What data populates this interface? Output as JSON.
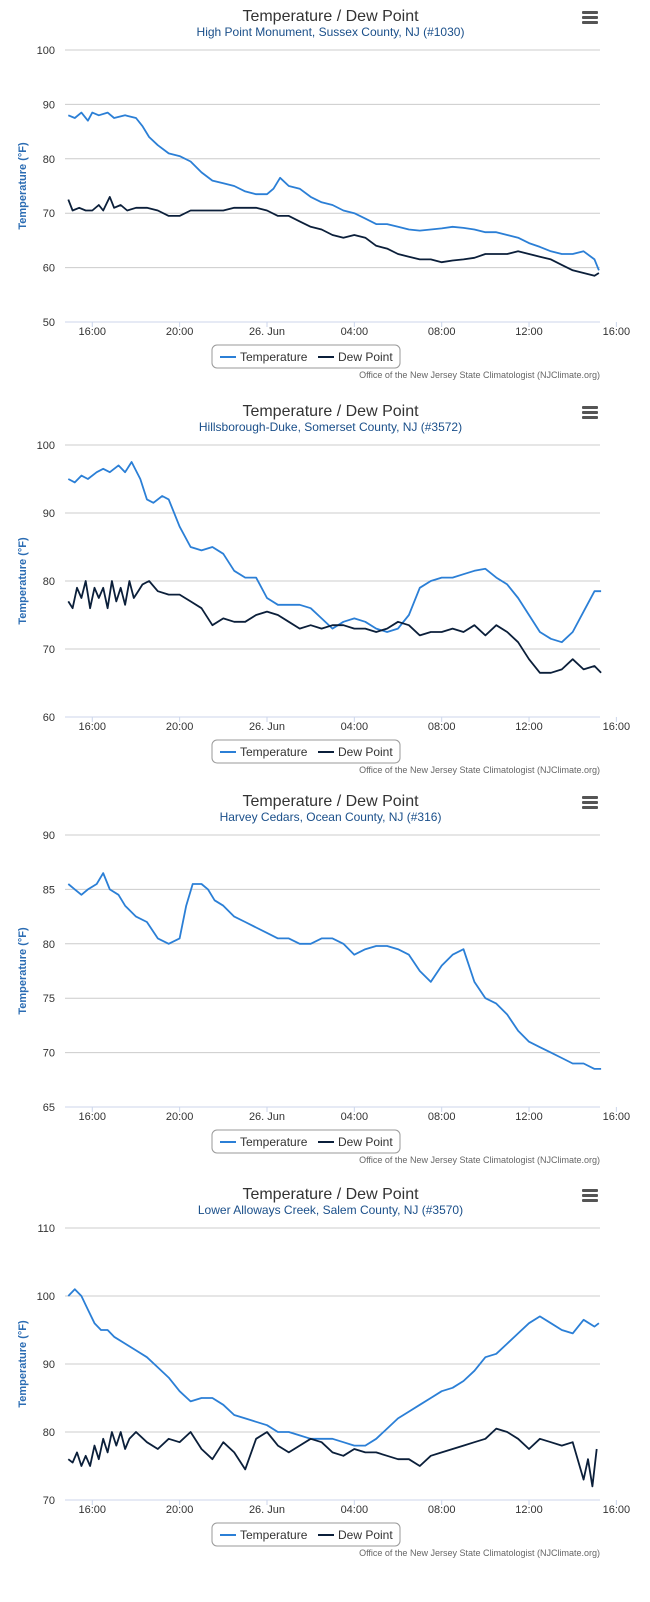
{
  "colors": {
    "temperature": "#2b7fd6",
    "dew_point": "#0b1f3a",
    "grid": "#cccccc",
    "title": "#333333",
    "subtitle": "#1a4f8a",
    "axis_title": "#2b6cb3"
  },
  "icons": {
    "menu": "menu-icon"
  },
  "chart_data": [
    {
      "type": "line",
      "title": "Temperature / Dew Point",
      "subtitle": "High Point Monument, Sussex County, NJ (#1030)",
      "ylabel": "Temperature (°F)",
      "xlabel": "",
      "ylim": [
        50,
        100
      ],
      "yticks": [
        50,
        60,
        70,
        80,
        90,
        100
      ],
      "xlim": [
        -1.25,
        23.25
      ],
      "xtick_values": [
        0,
        4,
        8,
        12,
        16,
        20,
        24
      ],
      "xtick_labels": [
        "16:00",
        "20:00",
        "26. Jun",
        "04:00",
        "08:00",
        "12:00",
        "16:00"
      ],
      "legend": [
        "Temperature",
        "Dew Point"
      ],
      "credit": "Office of the New Jersey State Climatologist (NJClimate.org)",
      "x_unit": "hours since 25 Jun 16:00",
      "series": [
        {
          "name": "Temperature",
          "x": [
            -1.1,
            -0.8,
            -0.5,
            -0.2,
            0,
            0.3,
            0.7,
            1,
            1.5,
            2,
            2.3,
            2.6,
            3,
            3.5,
            4,
            4.5,
            5,
            5.5,
            6,
            6.5,
            7,
            7.5,
            8,
            8.3,
            8.6,
            9,
            9.5,
            10,
            10.5,
            11,
            11.5,
            12,
            12.5,
            13,
            13.5,
            14,
            14.5,
            15,
            15.5,
            16,
            16.5,
            17,
            17.5,
            18,
            18.5,
            19,
            19.5,
            20,
            20.5,
            21,
            21.5,
            22,
            22.5,
            23,
            23.2
          ],
          "values": [
            88,
            87.5,
            88.5,
            87,
            88.5,
            88,
            88.5,
            87.5,
            88,
            87.5,
            86,
            84,
            82.5,
            81,
            80.5,
            79.5,
            77.5,
            76,
            75.5,
            75,
            74,
            73.5,
            73.5,
            74.5,
            76.5,
            75,
            74.5,
            73,
            72,
            71.5,
            70.5,
            70,
            69,
            68,
            68,
            67.5,
            67,
            66.8,
            67,
            67.2,
            67.5,
            67.3,
            67,
            66.5,
            66.5,
            66,
            65.5,
            64.5,
            63.8,
            63,
            62.5,
            62.5,
            63,
            61.5,
            59.5
          ]
        },
        {
          "name": "Dew Point",
          "x": [
            -1.1,
            -0.9,
            -0.6,
            -0.3,
            0,
            0.3,
            0.5,
            0.8,
            1,
            1.3,
            1.6,
            2,
            2.5,
            3,
            3.5,
            4,
            4.5,
            5,
            5.5,
            6,
            6.5,
            7,
            7.5,
            8,
            8.5,
            9,
            9.5,
            10,
            10.5,
            11,
            11.5,
            12,
            12.5,
            13,
            13.5,
            14,
            14.5,
            15,
            15.5,
            16,
            16.5,
            17,
            17.5,
            18,
            18.5,
            19,
            19.5,
            20,
            20.5,
            21,
            21.5,
            22,
            22.5,
            23,
            23.2
          ],
          "values": [
            72.5,
            70.5,
            71,
            70.5,
            70.5,
            71.5,
            70.5,
            73,
            71,
            71.5,
            70.5,
            71,
            71,
            70.5,
            69.5,
            69.5,
            70.5,
            70.5,
            70.5,
            70.5,
            71,
            71,
            71,
            70.5,
            69.5,
            69.5,
            68.5,
            67.5,
            67,
            66,
            65.5,
            66,
            65.5,
            64,
            63.5,
            62.5,
            62,
            61.5,
            61.5,
            61,
            61.3,
            61.5,
            61.8,
            62.5,
            62.5,
            62.5,
            63,
            62.5,
            62,
            61.5,
            60.5,
            59.5,
            59,
            58.5,
            59
          ]
        }
      ]
    },
    {
      "type": "line",
      "title": "Temperature / Dew Point",
      "subtitle": "Hillsborough-Duke, Somerset County, NJ (#3572)",
      "ylabel": "Temperature (°F)",
      "xlabel": "",
      "ylim": [
        60,
        100
      ],
      "yticks": [
        60,
        70,
        80,
        90,
        100
      ],
      "xlim": [
        -1.25,
        23.25
      ],
      "xtick_values": [
        0,
        4,
        8,
        12,
        16,
        20,
        24
      ],
      "xtick_labels": [
        "16:00",
        "20:00",
        "26. Jun",
        "04:00",
        "08:00",
        "12:00",
        "16:00"
      ],
      "legend": [
        "Temperature",
        "Dew Point"
      ],
      "credit": "Office of the New Jersey State Climatologist (NJClimate.org)",
      "x_unit": "hours since 25 Jun 16:00",
      "series": [
        {
          "name": "Temperature",
          "x": [
            -1.1,
            -0.8,
            -0.5,
            -0.2,
            0.2,
            0.5,
            0.8,
            1.2,
            1.5,
            1.8,
            2.2,
            2.5,
            2.8,
            3.2,
            3.5,
            4,
            4.5,
            5,
            5.5,
            6,
            6.5,
            7,
            7.5,
            8,
            8.5,
            9,
            9.5,
            10,
            10.5,
            11,
            11.5,
            12,
            12.5,
            13,
            13.5,
            14,
            14.5,
            15,
            15.5,
            16,
            16.5,
            17,
            17.5,
            18,
            18.5,
            19,
            19.5,
            20,
            20.5,
            21,
            21.5,
            22,
            22.5,
            23,
            23.3
          ],
          "values": [
            95,
            94.5,
            95.5,
            95,
            96,
            96.5,
            96,
            97,
            96,
            97.5,
            95,
            92,
            91.5,
            92.5,
            92,
            88,
            85,
            84.5,
            85,
            84,
            81.5,
            80.5,
            80.5,
            77.5,
            76.5,
            76.5,
            76.5,
            76,
            74.5,
            73,
            74,
            74.5,
            74,
            73,
            72.5,
            73,
            75,
            79,
            80,
            80.5,
            80.5,
            81,
            81.5,
            81.8,
            80.5,
            79.5,
            77.5,
            75,
            72.5,
            71.5,
            71,
            72.5,
            75.5,
            78.5,
            78.5
          ]
        },
        {
          "name": "Dew Point",
          "x": [
            -1.1,
            -0.9,
            -0.7,
            -0.5,
            -0.3,
            -0.1,
            0.1,
            0.3,
            0.5,
            0.7,
            0.9,
            1.1,
            1.3,
            1.5,
            1.7,
            1.9,
            2.1,
            2.3,
            2.6,
            3,
            3.5,
            4,
            4.5,
            5,
            5.5,
            6,
            6.5,
            7,
            7.5,
            8,
            8.5,
            9,
            9.5,
            10,
            10.5,
            11,
            11.5,
            12,
            12.5,
            13,
            13.5,
            14,
            14.5,
            15,
            15.5,
            16,
            16.5,
            17,
            17.5,
            18,
            18.5,
            19,
            19.5,
            20,
            20.5,
            21,
            21.5,
            22,
            22.5,
            23,
            23.3
          ],
          "values": [
            77,
            76,
            79,
            77.5,
            80,
            76,
            79,
            77.5,
            79,
            76,
            80,
            77,
            79,
            76.5,
            80,
            77.5,
            78.5,
            79.5,
            80,
            78.5,
            78,
            78,
            77,
            76,
            73.5,
            74.5,
            74,
            74,
            75,
            75.5,
            75,
            74,
            73,
            73.5,
            73,
            73.5,
            73.5,
            73,
            73,
            72.5,
            73,
            74,
            73.5,
            72,
            72.5,
            72.5,
            73,
            72.5,
            73.5,
            72,
            73.5,
            72.5,
            71,
            68.5,
            66.5,
            66.5,
            67,
            68.5,
            67,
            67.5,
            66.5
          ]
        }
      ]
    },
    {
      "type": "line",
      "title": "Temperature / Dew Point",
      "subtitle": "Harvey Cedars, Ocean County, NJ (#316)",
      "ylabel": "Temperature (°F)",
      "xlabel": "",
      "ylim": [
        65,
        90
      ],
      "yticks": [
        65,
        70,
        75,
        80,
        85,
        90
      ],
      "xlim": [
        -1.25,
        23.25
      ],
      "xtick_values": [
        0,
        4,
        8,
        12,
        16,
        20,
        24
      ],
      "xtick_labels": [
        "16:00",
        "20:00",
        "26. Jun",
        "04:00",
        "08:00",
        "12:00",
        "16:00"
      ],
      "legend": [
        "Temperature",
        "Dew Point"
      ],
      "credit": "Office of the New Jersey State Climatologist (NJClimate.org)",
      "x_unit": "hours since 25 Jun 16:00",
      "series": [
        {
          "name": "Temperature",
          "x": [
            -1.1,
            -0.8,
            -0.5,
            -0.2,
            0.2,
            0.5,
            0.8,
            1.2,
            1.5,
            2,
            2.5,
            3,
            3.5,
            4,
            4.3,
            4.6,
            5,
            5.3,
            5.6,
            6,
            6.5,
            7,
            7.5,
            8,
            8.5,
            9,
            9.5,
            10,
            10.5,
            11,
            11.5,
            12,
            12.5,
            13,
            13.5,
            14,
            14.5,
            15,
            15.5,
            16,
            16.5,
            17,
            17.5,
            18,
            18.5,
            19,
            19.5,
            20,
            20.5,
            21,
            21.5,
            22,
            22.5,
            23,
            23.3
          ],
          "values": [
            85.5,
            85,
            84.5,
            85,
            85.5,
            86.5,
            85,
            84.5,
            83.5,
            82.5,
            82,
            80.5,
            80,
            80.5,
            83.5,
            85.5,
            85.5,
            85,
            84,
            83.5,
            82.5,
            82,
            81.5,
            81,
            80.5,
            80.5,
            80,
            80,
            80.5,
            80.5,
            80,
            79,
            79.5,
            79.8,
            79.8,
            79.5,
            79,
            77.5,
            76.5,
            78,
            79,
            79.5,
            76.5,
            75,
            74.5,
            73.5,
            72,
            71,
            70.5,
            70,
            69.5,
            69,
            69,
            68.5,
            68.5
          ]
        }
      ]
    },
    {
      "type": "line",
      "title": "Temperature / Dew Point",
      "subtitle": "Lower Alloways Creek, Salem County, NJ (#3570)",
      "ylabel": "Temperature (°F)",
      "xlabel": "",
      "ylim": [
        70,
        110
      ],
      "yticks": [
        70,
        80,
        90,
        100,
        110
      ],
      "xlim": [
        -1.25,
        23.25
      ],
      "xtick_values": [
        0,
        4,
        8,
        12,
        16,
        20,
        24
      ],
      "xtick_labels": [
        "16:00",
        "20:00",
        "26. Jun",
        "04:00",
        "08:00",
        "12:00",
        "16:00"
      ],
      "legend": [
        "Temperature",
        "Dew Point"
      ],
      "credit": "Office of the New Jersey State Climatologist (NJClimate.org)",
      "x_unit": "hours since 25 Jun 16:00",
      "series": [
        {
          "name": "Temperature",
          "x": [
            -1.1,
            -0.8,
            -0.5,
            -0.2,
            0.1,
            0.4,
            0.7,
            1,
            1.5,
            2,
            2.5,
            3,
            3.5,
            4,
            4.5,
            5,
            5.5,
            6,
            6.5,
            7,
            7.5,
            8,
            8.5,
            9,
            9.5,
            10,
            10.5,
            11,
            11.5,
            12,
            12.5,
            13,
            13.5,
            14,
            14.5,
            15,
            15.5,
            16,
            16.5,
            17,
            17.5,
            18,
            18.5,
            19,
            19.5,
            20,
            20.5,
            21,
            21.5,
            22,
            22.5,
            23,
            23.2
          ],
          "values": [
            100,
            101,
            100,
            98,
            96,
            95,
            95,
            94,
            93,
            92,
            91,
            89.5,
            88,
            86,
            84.5,
            85,
            85,
            84,
            82.5,
            82,
            81.5,
            81,
            80,
            80,
            79.5,
            79,
            79,
            79,
            78.5,
            78,
            78,
            79,
            80.5,
            82,
            83,
            84,
            85,
            86,
            86.5,
            87.5,
            89,
            91,
            91.5,
            93,
            94.5,
            96,
            97,
            96,
            95,
            94.5,
            96.5,
            95.5,
            96
          ]
        },
        {
          "name": "Dew Point",
          "x": [
            -1.1,
            -0.9,
            -0.7,
            -0.5,
            -0.3,
            -0.1,
            0.1,
            0.3,
            0.5,
            0.7,
            0.9,
            1.1,
            1.3,
            1.5,
            1.7,
            2,
            2.5,
            3,
            3.5,
            4,
            4.5,
            5,
            5.5,
            6,
            6.5,
            7,
            7.5,
            8,
            8.5,
            9,
            9.5,
            10,
            10.5,
            11,
            11.5,
            12,
            12.5,
            13,
            13.5,
            14,
            14.5,
            15,
            15.5,
            16,
            16.5,
            17,
            17.5,
            18,
            18.5,
            19,
            19.5,
            20,
            20.5,
            21,
            21.5,
            22,
            22.5,
            22.7,
            22.9,
            23.1
          ],
          "values": [
            76,
            75.5,
            77,
            75,
            76.5,
            75,
            78,
            76,
            79,
            77,
            80,
            78,
            80,
            77.5,
            79,
            80,
            78.5,
            77.5,
            79,
            78.5,
            80,
            77.5,
            76,
            78.5,
            77,
            74.5,
            79,
            80,
            78,
            77,
            78,
            79,
            78.5,
            77,
            76.5,
            77.5,
            77,
            77,
            76.5,
            76,
            76,
            75,
            76.5,
            77,
            77.5,
            78,
            78.5,
            79,
            80.5,
            80,
            79,
            77.5,
            79,
            78.5,
            78,
            78.5,
            73,
            76,
            72,
            77.5
          ]
        }
      ]
    }
  ]
}
